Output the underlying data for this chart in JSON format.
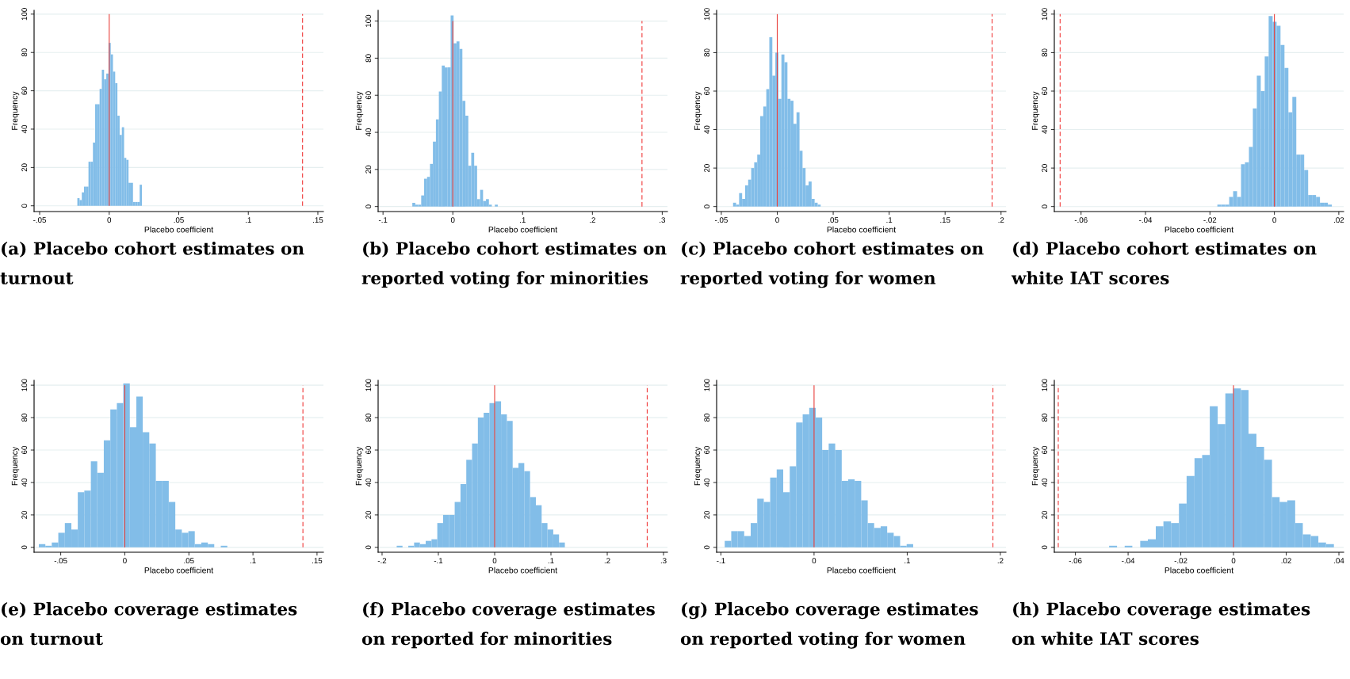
{
  "chart_data": [
    {
      "type": "histogram",
      "title": "(a) Placebo cohort estimates on\nturnout",
      "xlabel": "Placebo coefficient",
      "ylabel": "Frequency",
      "color": "#82bde8",
      "grid": "y",
      "bins": [
        -0.0229,
        -0.0213,
        -0.0197,
        -0.0181,
        -0.0165,
        -0.0149,
        -0.0133,
        -0.0117,
        -0.0101,
        -0.0085,
        -0.0069,
        -0.0053,
        -0.0037,
        -0.0021,
        -0.0005,
        0.0011,
        0.0027,
        0.0043,
        0.0059,
        0.0075,
        0.0091,
        0.0107,
        0.0123,
        0.0139,
        0.0155,
        0.0171,
        0.0187,
        0.0203,
        0.0219,
        0.0235
      ],
      "values": [
        4,
        3,
        7,
        10,
        10,
        23,
        23,
        33,
        53,
        53,
        61,
        71,
        66,
        69,
        85,
        79,
        70,
        64,
        47,
        37,
        41,
        25,
        24,
        12,
        12,
        2,
        2,
        2,
        11
      ],
      "xlim": [
        -0.054,
        0.154
      ],
      "ylim": [
        -3,
        102
      ],
      "xticks": [
        {
          "value": -0.05,
          "label": "-.05"
        },
        0,
        {
          "value": 0.05,
          "label": ".05"
        },
        {
          "value": 0.1,
          "label": ".1"
        },
        {
          "value": 0.15,
          "label": ".15"
        }
      ],
      "yticks": [
        0,
        20,
        40,
        60,
        80,
        100
      ],
      "ref_lines": [
        {
          "axis": "x",
          "value": 0,
          "color": "#e8403c",
          "line_style": "solid"
        },
        {
          "axis": "x",
          "value": 0.139,
          "color": "#f03a3a",
          "line_style": "dashed"
        }
      ]
    },
    {
      "type": "histogram",
      "title": "(b) Placebo cohort estimates on\nreported voting for minorities",
      "xlabel": "Placebo coefficient",
      "ylabel": "Frequency",
      "color": "#82bde8",
      "grid": "y",
      "bins": [
        -0.058,
        -0.0538,
        -0.0496,
        -0.0453,
        -0.0411,
        -0.0369,
        -0.0327,
        -0.0285,
        -0.0242,
        -0.02,
        -0.0158,
        -0.0116,
        -0.0074,
        -0.0031,
        0.0011,
        0.0053,
        0.0095,
        0.0137,
        0.018,
        0.0222,
        0.0264,
        0.0306,
        0.0348,
        0.0391,
        0.0433,
        0.0475,
        0.0517,
        0.0559,
        0.0602,
        0.0644
      ],
      "values": [
        2,
        1,
        1,
        6,
        15,
        16,
        23,
        35,
        47,
        62,
        76,
        75,
        75,
        103,
        88,
        89,
        85,
        57,
        49,
        22,
        29,
        22,
        4,
        9,
        3,
        4,
        1,
        0,
        1
      ],
      "xlim": [
        -0.107,
        0.3075
      ],
      "ylim": [
        -2.7,
        105.8
      ],
      "xticks": [
        {
          "value": -0.1,
          "label": "-.1"
        },
        0,
        {
          "value": 0.1,
          "label": ".1"
        },
        {
          "value": 0.2,
          "label": ".2"
        },
        {
          "value": 0.3,
          "label": ".3"
        }
      ],
      "yticks": [
        0,
        20,
        40,
        60,
        80,
        100
      ],
      "ref_lines": [
        {
          "axis": "x",
          "value": 0,
          "color": "#e8403c",
          "line_style": "solid"
        },
        {
          "axis": "x",
          "value": 0.271,
          "color": "#f03a3a",
          "line_style": "dashed"
        }
      ]
    },
    {
      "type": "histogram",
      "title": "(c) Placebo cohort estimates on\nreported voting for women",
      "xlabel": "Placebo coefficient",
      "ylabel": "Frequency",
      "color": "#82bde8",
      "grid": "y",
      "bins": [
        -0.0395,
        -0.0368,
        -0.0341,
        -0.0314,
        -0.0287,
        -0.026,
        -0.0233,
        -0.0206,
        -0.0179,
        -0.0152,
        -0.0125,
        -0.0098,
        -0.0071,
        -0.0044,
        -0.0017,
        0.001,
        0.0037,
        0.0064,
        0.0091,
        0.0118,
        0.0145,
        0.0172,
        0.0199,
        0.0226,
        0.0253,
        0.028,
        0.0307,
        0.0334,
        0.0361,
        0.0388
      ],
      "values": [
        2,
        1,
        7,
        4,
        11,
        14,
        20,
        23,
        27,
        47,
        52,
        61,
        88,
        68,
        80,
        56,
        79,
        75,
        56,
        55,
        43,
        49,
        29,
        20,
        11,
        13,
        4,
        2,
        1
      ],
      "xlim": [
        -0.0542,
        0.2044
      ],
      "ylim": [
        -2.6,
        102
      ],
      "xticks": [
        {
          "value": -0.05,
          "label": "-.05"
        },
        0,
        {
          "value": 0.05,
          "label": ".05"
        },
        {
          "value": 0.1,
          "label": ".1"
        },
        {
          "value": 0.15,
          "label": ".15"
        },
        {
          "value": 0.2,
          "label": ".2"
        }
      ],
      "yticks": [
        0,
        20,
        40,
        60,
        80,
        100
      ],
      "ref_lines": [
        {
          "axis": "x",
          "value": 0,
          "color": "#e8403c",
          "line_style": "solid"
        },
        {
          "axis": "x",
          "value": 0.192,
          "color": "#f03a3a",
          "line_style": "dashed"
        }
      ]
    },
    {
      "type": "histogram",
      "title": "(d) Placebo cohort estimates on\nwhite IAT scores",
      "xlabel": "Placebo coefficient",
      "ylabel": "Frequency",
      "color": "#82bde8",
      "grid": "y",
      "bins": [
        -0.0177,
        -0.01648,
        -0.01525,
        -0.01403,
        -0.0128,
        -0.01158,
        -0.01035,
        -0.00913,
        -0.0079,
        -0.00668,
        -0.00545,
        -0.00423,
        -0.003,
        -0.00178,
        -0.00055,
        0.00068,
        0.0019,
        0.00313,
        0.00435,
        0.00558,
        0.0068,
        0.00803,
        0.00925,
        0.01048,
        0.0117,
        0.01293,
        0.01415,
        0.01538,
        0.0166,
        0.01783
      ],
      "values": [
        1,
        1,
        1,
        5,
        8,
        5,
        22,
        23,
        31,
        51,
        68,
        60,
        78,
        99,
        96,
        94,
        84,
        72,
        49,
        57,
        27,
        27,
        19,
        6,
        6,
        5,
        2,
        2,
        1
      ],
      "xlim": [
        -0.0683,
        0.0215
      ],
      "ylim": [
        -2.6,
        102
      ],
      "xticks": [
        {
          "value": -0.06,
          "label": "-.06"
        },
        {
          "value": -0.04,
          "label": "-.04"
        },
        {
          "value": -0.02,
          "label": "-.02"
        },
        0,
        {
          "value": 0.02,
          "label": ".02"
        }
      ],
      "yticks": [
        0,
        20,
        40,
        60,
        80,
        100
      ],
      "ref_lines": [
        {
          "axis": "x",
          "value": 0,
          "color": "#e8403c",
          "line_style": "solid"
        },
        {
          "axis": "x",
          "value": -0.0665,
          "color": "#f03a3a",
          "line_style": "dashed"
        }
      ]
    },
    {
      "type": "histogram",
      "title": "(e) Placebo coverage estimates\non turnout",
      "xlabel": "Placebo coefficient",
      "ylabel": "Frequency",
      "color": "#82bde8",
      "grid": "y",
      "bins": [
        -0.0671,
        -0.062,
        -0.057,
        -0.0519,
        -0.0468,
        -0.0417,
        -0.0367,
        -0.0316,
        -0.0265,
        -0.0215,
        -0.0164,
        -0.0113,
        -0.0062,
        -0.0012,
        0.0039,
        0.009,
        0.014,
        0.0191,
        0.0242,
        0.0293,
        0.0343,
        0.0394,
        0.0445,
        0.0496,
        0.0546,
        0.0597,
        0.0648,
        0.0698,
        0.0749,
        0.08
      ],
      "values": [
        2,
        1,
        3,
        9,
        15,
        11,
        34,
        35,
        53,
        46,
        66,
        85,
        89,
        101,
        74,
        93,
        71,
        64,
        41,
        41,
        28,
        11,
        9,
        10,
        2,
        3,
        2,
        0,
        1
      ],
      "xlim": [
        -0.0708,
        0.155
      ],
      "ylim": [
        -3,
        103
      ],
      "xticks": [
        {
          "value": -0.05,
          "label": "-.05"
        },
        0,
        {
          "value": 0.05,
          "label": ".05"
        },
        {
          "value": 0.1,
          "label": ".1"
        },
        {
          "value": 0.15,
          "label": ".15"
        }
      ],
      "yticks": [
        0,
        20,
        40,
        60,
        80,
        100
      ],
      "ref_lines": [
        {
          "axis": "x",
          "value": 0,
          "color": "#e8403c",
          "line_style": "solid"
        },
        {
          "axis": "x",
          "value": 0.139,
          "color": "#f03a3a",
          "line_style": "dashed"
        }
      ]
    },
    {
      "type": "histogram",
      "title": "(f) Placebo coverage estimates\non reported for minorities",
      "xlabel": "Placebo coefficient",
      "ylabel": "Frequency",
      "color": "#82bde8",
      "grid": "y",
      "bins": [
        -0.174,
        -0.1637,
        -0.1534,
        -0.1431,
        -0.1328,
        -0.1225,
        -0.1122,
        -0.1019,
        -0.0916,
        -0.0813,
        -0.071,
        -0.0607,
        -0.0504,
        -0.0401,
        -0.0298,
        -0.0195,
        -0.0092,
        0.0011,
        0.0114,
        0.0217,
        0.032,
        0.0423,
        0.0526,
        0.0629,
        0.0732,
        0.0835,
        0.0938,
        0.1041,
        0.1144,
        0.1247
      ],
      "values": [
        1,
        0,
        1,
        3,
        2,
        4,
        5,
        15,
        20,
        20,
        28,
        39,
        54,
        64,
        80,
        83,
        89,
        90,
        82,
        78,
        49,
        52,
        47,
        31,
        26,
        15,
        11,
        8,
        3
      ],
      "xlim": [
        -0.207,
        0.307
      ],
      "ylim": [
        -3,
        103
      ],
      "xticks": [
        {
          "value": -0.2,
          "label": "-.2"
        },
        {
          "value": -0.1,
          "label": "-.1"
        },
        0,
        {
          "value": 0.1,
          "label": ".1"
        },
        {
          "value": 0.2,
          "label": ".2"
        },
        {
          "value": 0.3,
          "label": ".3"
        }
      ],
      "yticks": [
        0,
        20,
        40,
        60,
        80,
        100
      ],
      "ref_lines": [
        {
          "axis": "x",
          "value": 0,
          "color": "#e8403c",
          "line_style": "solid"
        },
        {
          "axis": "x",
          "value": 0.271,
          "color": "#f03a3a",
          "line_style": "dashed"
        }
      ]
    },
    {
      "type": "histogram",
      "title": "(g) Placebo coverage estimates\non reported voting for women",
      "xlabel": "Placebo coefficient",
      "ylabel": "Frequency",
      "color": "#82bde8",
      "grid": "y",
      "bins": [
        -0.0959,
        -0.0889,
        -0.0819,
        -0.075,
        -0.068,
        -0.061,
        -0.054,
        -0.0471,
        -0.0401,
        -0.0331,
        -0.0261,
        -0.0192,
        -0.0122,
        -0.0052,
        0.0018,
        0.0087,
        0.0157,
        0.0227,
        0.0297,
        0.0366,
        0.0436,
        0.0506,
        0.0576,
        0.0645,
        0.0715,
        0.0785,
        0.0855,
        0.0924,
        0.0994,
        0.1064
      ],
      "values": [
        4,
        10,
        10,
        7,
        15,
        30,
        28,
        43,
        48,
        34,
        50,
        77,
        82,
        86,
        80,
        60,
        64,
        60,
        41,
        42,
        41,
        29,
        15,
        12,
        13,
        9,
        7,
        1,
        2
      ],
      "xlim": [
        -0.1046,
        0.206
      ],
      "ylim": [
        -3,
        103
      ],
      "xticks": [
        {
          "value": -0.1,
          "label": "-.1"
        },
        0,
        {
          "value": 0.1,
          "label": ".1"
        },
        {
          "value": 0.2,
          "label": ".2"
        }
      ],
      "yticks": [
        0,
        20,
        40,
        60,
        80,
        100
      ],
      "ref_lines": [
        {
          "axis": "x",
          "value": 0,
          "color": "#e8403c",
          "line_style": "solid"
        },
        {
          "axis": "x",
          "value": 0.192,
          "color": "#f03a3a",
          "line_style": "dashed"
        }
      ]
    },
    {
      "type": "histogram",
      "title": "(h) Placebo coverage estimates\non white IAT scores",
      "xlabel": "Placebo coefficient",
      "ylabel": "Frequency",
      "color": "#82bde8",
      "grid": "y",
      "bins": [
        -0.0472,
        -0.0442,
        -0.0413,
        -0.0384,
        -0.0354,
        -0.0325,
        -0.0295,
        -0.0266,
        -0.0237,
        -0.0207,
        -0.0178,
        -0.0148,
        -0.0119,
        -0.009,
        -0.006,
        -0.0031,
        -0.0001,
        0.0028,
        0.0057,
        0.0087,
        0.0116,
        0.0146,
        0.0175,
        0.0204,
        0.0234,
        0.0263,
        0.0293,
        0.0322,
        0.0351,
        0.0381
      ],
      "values": [
        1,
        0,
        1,
        0,
        4,
        5,
        13,
        16,
        15,
        27,
        44,
        55,
        57,
        87,
        76,
        95,
        98,
        97,
        70,
        62,
        54,
        31,
        28,
        29,
        15,
        8,
        7,
        3,
        2
      ],
      "xlim": [
        -0.068,
        0.0418
      ],
      "ylim": [
        -3,
        103
      ],
      "xticks": [
        {
          "value": -0.06,
          "label": "-.06"
        },
        {
          "value": -0.04,
          "label": "-.04"
        },
        {
          "value": -0.02,
          "label": "-.02"
        },
        0,
        {
          "value": 0.02,
          "label": ".02"
        },
        {
          "value": 0.04,
          "label": ".04"
        }
      ],
      "yticks": [
        0,
        20,
        40,
        60,
        80,
        100
      ],
      "ref_lines": [
        {
          "axis": "x",
          "value": 0,
          "color": "#e8403c",
          "line_style": "solid"
        },
        {
          "axis": "x",
          "value": -0.0665,
          "color": "#f03a3a",
          "line_style": "dashed"
        }
      ]
    }
  ]
}
